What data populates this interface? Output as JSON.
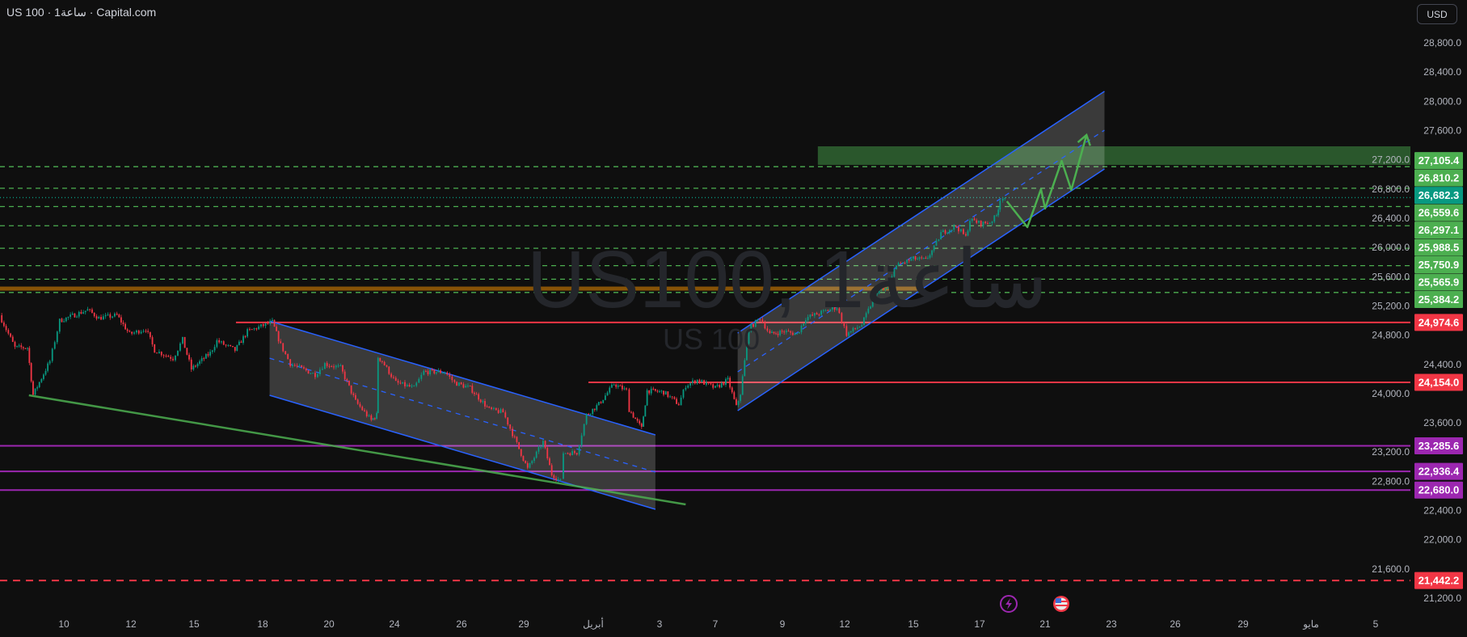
{
  "header": {
    "symbol": "US 100",
    "interval": "1ساعة",
    "source": "Capital.com",
    "separator": "·",
    "currency_button": "USD"
  },
  "watermark": {
    "main": "US100, 1ساعة",
    "sub": "US 100"
  },
  "icons": {
    "events": "lightning-icon",
    "country": "us-flag-icon"
  },
  "colors": {
    "background": "#0f0f0f",
    "candle_up": "#089981",
    "candle_down": "#f23645",
    "channel": "#2962ff",
    "support_resistance_green": "#4caf50",
    "current_price": "#089981",
    "red_level": "#f23645",
    "purple_level": "#9c27b0",
    "orange_zone": "#ff9800"
  },
  "chart_data": {
    "type": "candlestick",
    "title": "US 100 · 1ساعة · Capital.com",
    "ylim": [
      21000,
      29000
    ],
    "y_ticks": [
      "28,800.0",
      "28,400.0",
      "28,000.0",
      "27,600.0",
      "27,200.0",
      "26,800.0",
      "26,400.0",
      "26,000.0",
      "25,600.0",
      "25,200.0",
      "24,800.0",
      "24,400.0",
      "24,000.0",
      "23,600.0",
      "23,200.0",
      "22,800.0",
      "22,400.0",
      "22,000.0",
      "21,600.0",
      "21,200.0"
    ],
    "x_ticks": [
      {
        "label": "10",
        "date": "03-10"
      },
      {
        "label": "12",
        "date": "03-12"
      },
      {
        "label": "15",
        "date": "03-15"
      },
      {
        "label": "18",
        "date": "03-18"
      },
      {
        "label": "20",
        "date": "03-20"
      },
      {
        "label": "24",
        "date": "03-24"
      },
      {
        "label": "26",
        "date": "03-26"
      },
      {
        "label": "29",
        "date": "03-29"
      },
      {
        "label": "أبريل",
        "date": "04-01"
      },
      {
        "label": "3",
        "date": "04-03"
      },
      {
        "label": "7",
        "date": "04-07"
      },
      {
        "label": "9",
        "date": "04-09"
      },
      {
        "label": "12",
        "date": "04-12"
      },
      {
        "label": "15",
        "date": "04-15"
      },
      {
        "label": "17",
        "date": "04-17"
      },
      {
        "label": "21",
        "date": "04-21"
      },
      {
        "label": "23",
        "date": "04-23"
      },
      {
        "label": "26",
        "date": "04-26"
      },
      {
        "label": "29",
        "date": "04-29"
      },
      {
        "label": "مايو",
        "date": "05-01"
      },
      {
        "label": "5",
        "date": "05-05"
      }
    ],
    "current_price": 26682.3,
    "price_path": [
      [
        "03-08 02:00",
        25072
      ],
      [
        "03-08 13:00",
        24630
      ],
      [
        "03-08 22:00",
        24630
      ],
      [
        "03-09 02:00",
        23984
      ],
      [
        "03-09 14:00",
        24445
      ],
      [
        "03-09 21:00",
        24998
      ],
      [
        "03-10 17:00",
        25146
      ],
      [
        "03-11 01:00",
        25035
      ],
      [
        "03-11 14:00",
        25072
      ],
      [
        "03-11 23:00",
        24814
      ],
      [
        "03-12 17:00",
        24888
      ],
      [
        "03-13 03:00",
        24593
      ],
      [
        "03-14 00:00",
        24482
      ],
      [
        "03-14 11:00",
        24740
      ],
      [
        "03-14 21:00",
        24335
      ],
      [
        "03-15 17:00",
        24556
      ],
      [
        "03-16 00:00",
        24722
      ],
      [
        "03-16 19:00",
        24593
      ],
      [
        "03-17 08:00",
        24851
      ],
      [
        "03-18 07:00",
        24980
      ],
      [
        "03-18 13:00",
        24666
      ],
      [
        "03-18 20:00",
        24408
      ],
      [
        "03-19 14:00",
        24261
      ],
      [
        "03-19 21:00",
        24408
      ],
      [
        "03-20 17:00",
        24353
      ],
      [
        "03-21 15:00",
        23892
      ],
      [
        "03-22 14:00",
        23634
      ],
      [
        "03-22 22:00",
        23708
      ],
      [
        "03-23 00:00",
        24500
      ],
      [
        "03-23 06:00",
        24442
      ],
      [
        "03-24 01:00",
        24150
      ],
      [
        "03-24 14:00",
        24076
      ],
      [
        "03-24 21:00",
        24298
      ],
      [
        "03-25 12:00",
        24298
      ],
      [
        "03-25 19:00",
        24150
      ],
      [
        "03-26 10:00",
        24076
      ],
      [
        "03-27 08:00",
        23782
      ],
      [
        "03-28 00:00",
        23745
      ],
      [
        "03-28 11:00",
        23450
      ],
      [
        "03-29 04:00",
        22970
      ],
      [
        "03-29 20:00",
        23339
      ],
      [
        "03-30 05:00",
        22897
      ],
      [
        "03-30 14:00",
        22804
      ],
      [
        "03-30 17:00",
        23192
      ],
      [
        "03-31 07:00",
        23192
      ],
      [
        "03-31 17:00",
        23708
      ],
      [
        "04-01 04:00",
        23855
      ],
      [
        "04-01 15:00",
        24132
      ],
      [
        "04-02 00:00",
        24040
      ],
      [
        "04-02 02:00",
        23782
      ],
      [
        "04-02 11:00",
        23523
      ],
      [
        "04-02 15:00",
        24040
      ],
      [
        "04-03 07:00",
        24021
      ],
      [
        "04-04 09:00",
        23855
      ],
      [
        "04-04 21:00",
        24113
      ],
      [
        "04-05 17:00",
        24187
      ],
      [
        "04-07 00:00",
        24076
      ],
      [
        "04-07 09:00",
        24187
      ],
      [
        "04-07 15:00",
        23818
      ],
      [
        "04-07 18:00",
        24003
      ],
      [
        "04-08 00:00",
        24888
      ],
      [
        "04-08 08:00",
        25035
      ],
      [
        "04-08 15:00",
        24814
      ],
      [
        "04-09 02:00",
        24851
      ],
      [
        "04-09 17:00",
        24814
      ],
      [
        "04-10 03:00",
        25035
      ],
      [
        "04-10 21:00",
        25109
      ],
      [
        "04-11 15:00",
        25183
      ],
      [
        "04-12 02:00",
        24814
      ],
      [
        "04-12 18:00",
        24943
      ],
      [
        "04-13 10:00",
        25404
      ],
      [
        "04-13 23:00",
        25441
      ],
      [
        "04-14 04:00",
        25736
      ],
      [
        "04-15 00:00",
        25847
      ],
      [
        "04-15 09:00",
        25828
      ],
      [
        "04-15 15:00",
        25994
      ],
      [
        "04-15 20:00",
        26197
      ],
      [
        "04-16 07:00",
        26289
      ],
      [
        "04-16 14:00",
        26141
      ],
      [
        "04-16 17:00",
        26381
      ],
      [
        "04-17 02:00",
        26326
      ],
      [
        "04-17 15:00",
        26344
      ],
      [
        "04-18 01:00",
        26437
      ],
      [
        "04-18 06:00",
        26658
      ],
      [
        "04-18 10:00",
        26695
      ],
      [
        "04-18 13:00",
        26682.3
      ]
    ],
    "levels": [
      {
        "price": 27105.4,
        "label": "27,105.4",
        "color": "#4caf50",
        "style": "dashed"
      },
      {
        "price": 26810.2,
        "label": "26,810.2",
        "color": "#4caf50",
        "style": "dashed"
      },
      {
        "price": 26682.3,
        "label": "26,682.3",
        "color": "#089981",
        "style": "dotted"
      },
      {
        "price": 26559.6,
        "label": "26,559.6",
        "color": "#4caf50",
        "style": "dashed"
      },
      {
        "price": 26297.1,
        "label": "26,297.1",
        "color": "#4caf50",
        "style": "dashed"
      },
      {
        "price": 25988.5,
        "label": "25,988.5",
        "color": "#4caf50",
        "style": "dashed"
      },
      {
        "price": 25750.9,
        "label": "25,750.9",
        "color": "#4caf50",
        "style": "dashed"
      },
      {
        "price": 25565.9,
        "label": "25,565.9",
        "color": "#4caf50",
        "style": "dashed"
      },
      {
        "price": 25384.2,
        "label": "25,384.2",
        "color": "#4caf50",
        "style": "dashed"
      },
      {
        "price": 24974.6,
        "label": "24,974.6",
        "color": "#f23645",
        "style": "solid",
        "from": "03-16 20:00"
      },
      {
        "price": 24154.0,
        "label": "24,154.0",
        "color": "#f23645",
        "style": "solid",
        "from": "03-31 19:00"
      },
      {
        "price": 23285.6,
        "label": "23,285.6",
        "color": "#9c27b0",
        "style": "solid"
      },
      {
        "price": 22936.4,
        "label": "22,936.4",
        "color": "#9c27b0",
        "style": "solid"
      },
      {
        "price": 22680.0,
        "label": "22,680.0",
        "color": "#9c27b0",
        "style": "solid"
      },
      {
        "price": 21442.2,
        "label": "21,442.2",
        "color": "#f23645",
        "style": "dashed"
      }
    ],
    "orange_zone": {
      "price": 25437,
      "to": "04-15 04:00"
    },
    "target_zone": {
      "from": "04-10 17:00",
      "price_top": 27384,
      "price_bottom": 27130
    },
    "descending_channel": {
      "start": "03-18 05:00",
      "end": "04-02 21:00",
      "upper": [
        24992,
        23435
      ],
      "lower": [
        23977,
        22417
      ]
    },
    "ascending_channel": {
      "start": "04-07 16:00",
      "end": "04-22 19:00",
      "upper": [
        24829,
        28136
      ],
      "lower": [
        23767,
        27074
      ]
    },
    "trendline": {
      "start": [
        "03-08 23:00",
        23977
      ],
      "end": [
        "04-04 21:00",
        22484
      ]
    },
    "projection": [
      [
        "04-18 16:00",
        26632
      ],
      [
        "04-19 22:00",
        26278
      ],
      [
        "04-20 18:00",
        26798
      ],
      [
        "04-21 00:00",
        26532
      ],
      [
        "04-21 12:00",
        27185
      ],
      [
        "04-21 19:00",
        26787
      ],
      [
        "04-22 06:00",
        27539
      ]
    ]
  }
}
